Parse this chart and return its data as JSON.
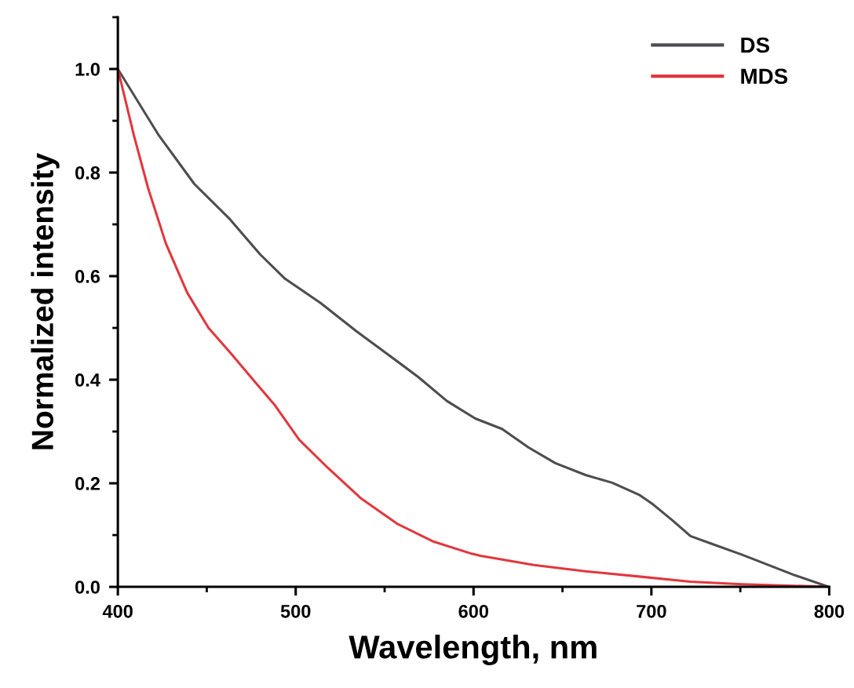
{
  "chart_data": {
    "type": "line",
    "xlabel": "Wavelength, nm",
    "ylabel": "Normalized intensity",
    "xlim": [
      400,
      800
    ],
    "xticks": [
      400,
      500,
      600,
      700,
      800
    ],
    "ylim": [
      0,
      1.1
    ],
    "yticks": [
      {
        "value": 0,
        "label": "0.0"
      },
      0.2,
      0.4,
      0.6,
      0.8,
      {
        "value": 1,
        "label": "1.0"
      }
    ],
    "legend": "top right",
    "grid": false,
    "line_style": "solid",
    "marker": "none",
    "series": [
      {
        "name": "DS",
        "color": "#4d4d4f",
        "x": [
          400,
          423,
          443,
          463,
          480,
          494,
          514,
          534,
          553,
          569,
          585,
          601,
          616,
          631,
          646,
          663,
          678,
          693,
          701,
          712,
          722,
          734,
          751,
          766,
          781,
          798,
          800
        ],
        "values": [
          1.0,
          0.872,
          0.778,
          0.71,
          0.642,
          0.595,
          0.548,
          0.494,
          0.446,
          0.405,
          0.359,
          0.325,
          0.305,
          0.269,
          0.239,
          0.216,
          0.201,
          0.178,
          0.159,
          0.128,
          0.098,
          0.083,
          0.062,
          0.042,
          0.022,
          0.002,
          0.0
        ]
      },
      {
        "name": "MDS",
        "color": "#e0383e",
        "x": [
          400,
          409,
          417,
          427,
          439,
          451,
          463,
          478,
          488,
          502,
          518,
          537,
          557,
          577,
          599,
          604,
          634,
          663,
          693,
          722,
          751,
          780,
          800
        ],
        "values": [
          1.0,
          0.872,
          0.77,
          0.663,
          0.568,
          0.5,
          0.453,
          0.392,
          0.352,
          0.284,
          0.23,
          0.17,
          0.122,
          0.088,
          0.064,
          0.06,
          0.042,
          0.03,
          0.02,
          0.01,
          0.005,
          0.002,
          0.0
        ]
      }
    ]
  }
}
